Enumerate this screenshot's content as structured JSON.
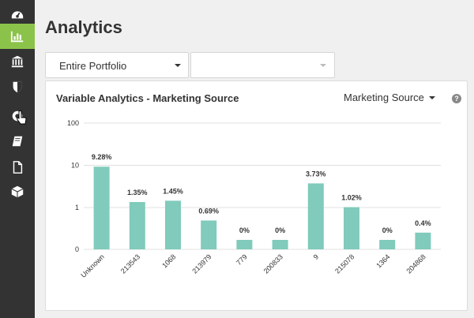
{
  "sidebar": {
    "items": [
      {
        "icon": "dashboard-icon",
        "active": false
      },
      {
        "icon": "analytics-icon",
        "active": true
      },
      {
        "icon": "bank-icon",
        "active": false
      },
      {
        "icon": "shield-icon",
        "active": false
      },
      {
        "icon": "privacy-icon",
        "active": false
      },
      {
        "icon": "book-icon",
        "active": false
      },
      {
        "icon": "document-icon",
        "active": false
      },
      {
        "icon": "package-icon",
        "active": false
      }
    ],
    "active_color": "#8bc34a",
    "bg_color": "#333333"
  },
  "page": {
    "title": "Analytics"
  },
  "filters": {
    "portfolio": "Entire Portfolio",
    "secondary": ""
  },
  "panel": {
    "title": "Variable Analytics - Marketing Source",
    "source_select": "Marketing Source",
    "help": "?"
  },
  "chart_data": {
    "type": "bar",
    "yscale": "log",
    "ylim": [
      0,
      100
    ],
    "yticks": [
      "0",
      "1",
      "10",
      "100"
    ],
    "categories": [
      "Unknown",
      "213543",
      "1068",
      "213979",
      "779",
      "200833",
      "9",
      "215078",
      "1364",
      "204868"
    ],
    "values": [
      9.28,
      1.35,
      1.45,
      0.69,
      0,
      0,
      3.73,
      1.02,
      0,
      0.4
    ],
    "labels": [
      "9.28%",
      "1.35%",
      "1.45%",
      "0.69%",
      "0%",
      "0%",
      "3.73%",
      "1.02%",
      "0%",
      "0.4%"
    ],
    "bar_color": "#80cbbb",
    "grid": true
  }
}
